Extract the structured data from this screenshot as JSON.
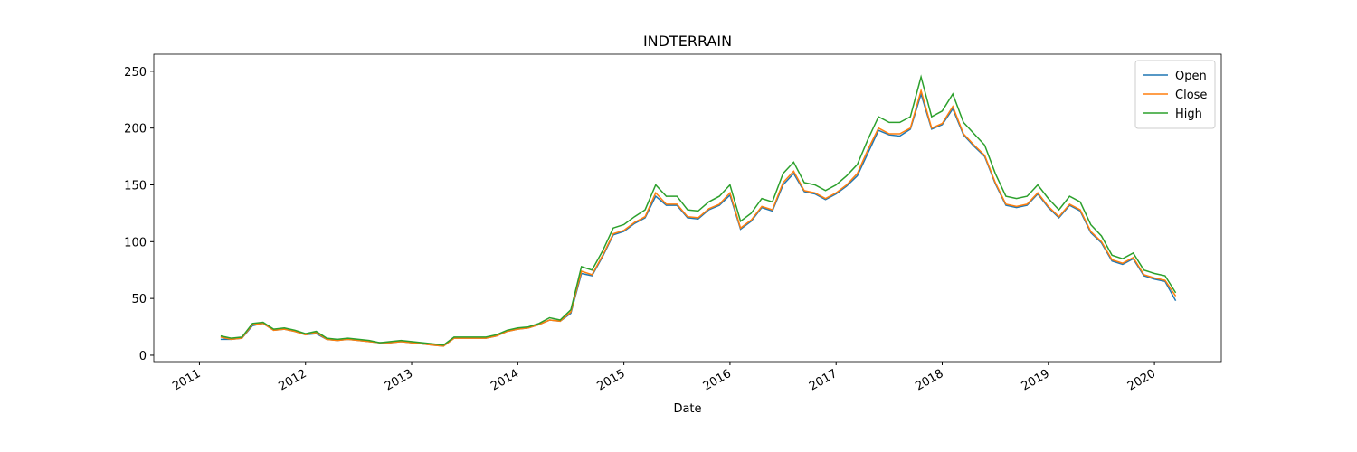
{
  "chart_data": {
    "type": "line",
    "title": "INDTERRAIN",
    "xlabel": "Date",
    "x": [
      2011.2,
      2011.3,
      2011.4,
      2011.5,
      2011.6,
      2011.7,
      2011.8,
      2011.9,
      2012.0,
      2012.1,
      2012.2,
      2012.3,
      2012.4,
      2012.5,
      2012.6,
      2012.7,
      2012.8,
      2012.9,
      2013.0,
      2013.1,
      2013.2,
      2013.3,
      2013.4,
      2013.5,
      2013.6,
      2013.7,
      2013.8,
      2013.9,
      2014.0,
      2014.1,
      2014.2,
      2014.3,
      2014.4,
      2014.5,
      2014.6,
      2014.7,
      2014.8,
      2014.9,
      2015.0,
      2015.1,
      2015.2,
      2015.3,
      2015.4,
      2015.5,
      2015.6,
      2015.7,
      2015.8,
      2015.9,
      2016.0,
      2016.1,
      2016.2,
      2016.3,
      2016.4,
      2016.5,
      2016.6,
      2016.7,
      2016.8,
      2016.9,
      2017.0,
      2017.1,
      2017.2,
      2017.3,
      2017.4,
      2017.5,
      2017.6,
      2017.7,
      2017.8,
      2017.9,
      2018.0,
      2018.1,
      2018.2,
      2018.3,
      2018.4,
      2018.5,
      2018.6,
      2018.7,
      2018.8,
      2018.9,
      2019.0,
      2019.1,
      2019.2,
      2019.3,
      2019.4,
      2019.5,
      2019.6,
      2019.7,
      2019.8,
      2019.9,
      2020.0,
      2020.1,
      2020.2
    ],
    "series": [
      {
        "name": "Open",
        "color": "#1f77b4",
        "values": [
          14,
          14,
          15,
          26,
          28,
          22,
          23,
          21,
          18,
          19,
          14,
          13,
          14,
          13,
          12,
          11,
          11,
          12,
          11,
          10,
          9,
          8,
          15,
          15,
          15,
          15,
          17,
          21,
          23,
          24,
          27,
          31,
          30,
          37,
          72,
          70,
          87,
          106,
          109,
          116,
          121,
          140,
          132,
          132,
          121,
          120,
          128,
          132,
          141,
          111,
          118,
          130,
          127,
          150,
          160,
          144,
          142,
          137,
          142,
          149,
          158,
          178,
          198,
          194,
          193,
          199,
          230,
          199,
          203,
          217,
          194,
          184,
          175,
          151,
          132,
          130,
          132,
          142,
          130,
          121,
          132,
          127,
          108,
          99,
          83,
          80,
          85,
          70,
          67,
          65,
          48
        ]
      },
      {
        "name": "Close",
        "color": "#ff7f0e",
        "values": [
          16,
          14,
          15,
          27,
          28,
          22,
          23,
          21,
          18,
          20,
          14,
          13,
          14,
          13,
          12,
          11,
          11,
          12,
          11,
          10,
          9,
          8,
          15,
          15,
          15,
          15,
          17,
          21,
          23,
          24,
          27,
          31,
          30,
          38,
          74,
          71,
          88,
          107,
          110,
          117,
          122,
          143,
          133,
          133,
          122,
          121,
          129,
          133,
          143,
          112,
          119,
          131,
          128,
          152,
          162,
          145,
          143,
          138,
          143,
          150,
          160,
          181,
          200,
          195,
          195,
          200,
          233,
          200,
          204,
          219,
          195,
          185,
          176,
          152,
          133,
          131,
          133,
          143,
          131,
          122,
          133,
          128,
          109,
          100,
          84,
          81,
          86,
          71,
          68,
          66,
          52
        ]
      },
      {
        "name": "High",
        "color": "#2ca02c",
        "values": [
          17,
          15,
          16,
          28,
          29,
          23,
          24,
          22,
          19,
          21,
          15,
          14,
          15,
          14,
          13,
          11,
          12,
          13,
          12,
          11,
          10,
          9,
          16,
          16,
          16,
          16,
          18,
          22,
          24,
          25,
          28,
          33,
          31,
          40,
          78,
          75,
          92,
          112,
          115,
          122,
          128,
          150,
          140,
          140,
          128,
          127,
          135,
          140,
          150,
          118,
          125,
          138,
          135,
          160,
          170,
          152,
          150,
          145,
          150,
          158,
          168,
          190,
          210,
          205,
          205,
          210,
          245,
          210,
          215,
          230,
          205,
          195,
          185,
          160,
          140,
          138,
          140,
          150,
          138,
          128,
          140,
          135,
          115,
          105,
          88,
          85,
          90,
          75,
          72,
          70,
          55
        ]
      }
    ],
    "xlim": [
      2010.57,
      2020.63
    ],
    "xticks": [
      2011,
      2012,
      2013,
      2014,
      2015,
      2016,
      2017,
      2018,
      2019,
      2020
    ],
    "ylim": [
      -5.6,
      265
    ],
    "yticks": [
      0,
      50,
      100,
      150,
      200,
      250
    ],
    "legend": "upper right",
    "grid": false
  }
}
